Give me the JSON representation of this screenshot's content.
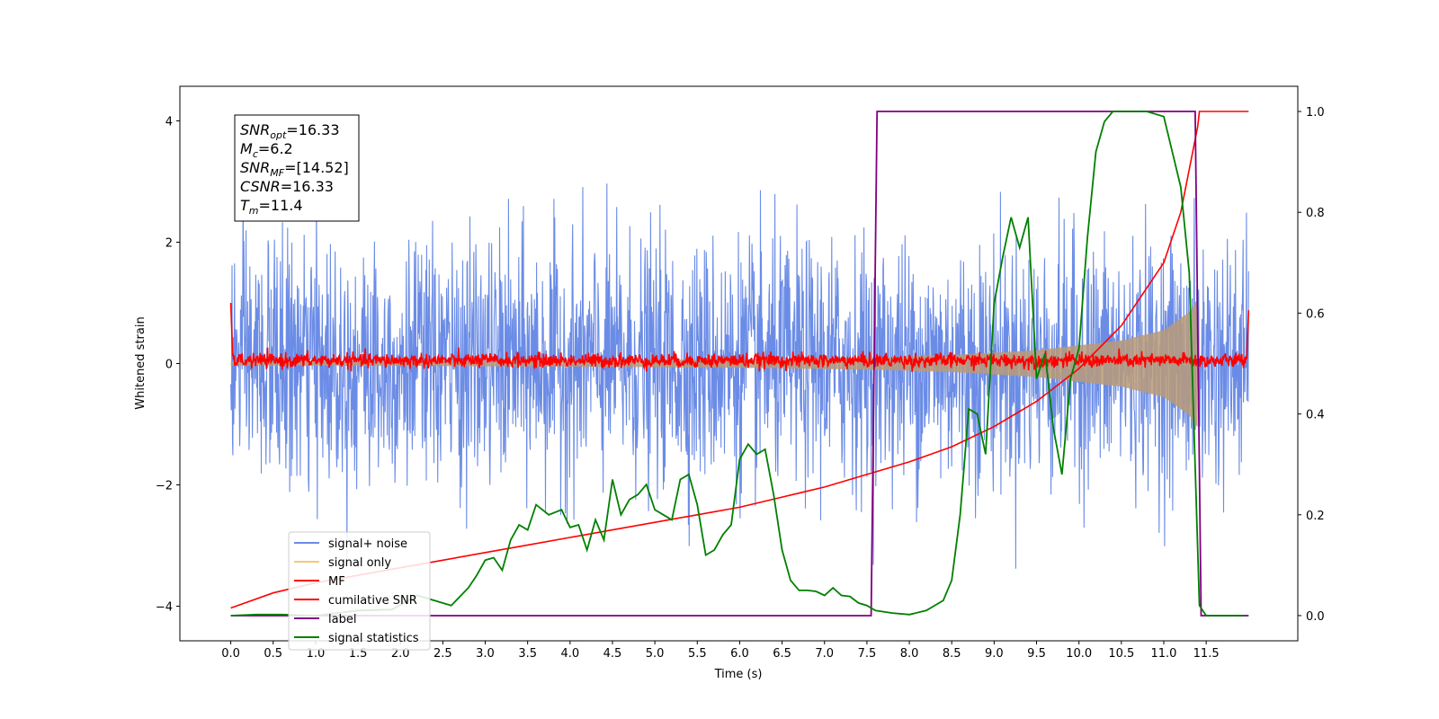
{
  "chart_data": {
    "type": "line",
    "xlabel": "Time (s)",
    "ylabel": "Whitened strain",
    "xlim": [
      -0.6,
      12.58
    ],
    "ylim": [
      -4.57,
      4.57
    ],
    "y2lim": [
      -0.05,
      1.05
    ],
    "x_ticks": [
      0.0,
      0.5,
      1.0,
      1.5,
      2.0,
      2.5,
      3.0,
      3.5,
      4.0,
      4.5,
      5.0,
      5.5,
      6.0,
      6.5,
      7.0,
      7.5,
      8.0,
      8.5,
      9.0,
      9.5,
      10.0,
      10.5,
      11.0,
      11.5
    ],
    "x_tick_labels": [
      "0.0",
      "0.5",
      "1.0",
      "1.5",
      "2.0",
      "2.5",
      "3.0",
      "3.5",
      "4.0",
      "4.5",
      "5.0",
      "5.5",
      "6.0",
      "6.5",
      "7.0",
      "7.5",
      "8.0",
      "8.5",
      "9.0",
      "9.5",
      "10.0",
      "10.5",
      "11.0",
      "11.5"
    ],
    "y_ticks": [
      -4,
      -2,
      0,
      2,
      4
    ],
    "y_tick_labels": [
      "−4",
      "−2",
      "0",
      "2",
      "4"
    ],
    "y2_ticks": [
      0.0,
      0.2,
      0.4,
      0.6,
      0.8,
      1.0
    ],
    "y2_tick_labels": [
      "0.0",
      "0.2",
      "0.4",
      "0.6",
      "0.8",
      "1.0"
    ],
    "grid": false,
    "legend_position": "lower-left",
    "annotation": {
      "lines": [
        {
          "base": "SNR",
          "sub": "opt",
          "value": "=16.33"
        },
        {
          "base": "M",
          "sub": "c",
          "value": "=6.2"
        },
        {
          "base": "SNR",
          "sub": "MF",
          "value": "=[14.52]"
        },
        {
          "base": "CSNR",
          "sub": "",
          "value": "=16.33"
        },
        {
          "base": "T",
          "sub": "m",
          "value": "=11.4"
        }
      ]
    },
    "series": [
      {
        "name": "signal+ noise",
        "color": "#6b8ce6",
        "axis": "left",
        "style": "noise",
        "sigma": 1.0,
        "x_range": [
          0.0,
          12.0
        ]
      },
      {
        "name": "signal only",
        "color": "#f5c77a",
        "axis": "left",
        "style": "chirp",
        "envelope_x": [
          0.0,
          2.0,
          4.0,
          6.0,
          7.5,
          8.5,
          9.5,
          10.5,
          11.0,
          11.3,
          11.4
        ],
        "envelope_y": [
          0.03,
          0.04,
          0.05,
          0.07,
          0.1,
          0.14,
          0.22,
          0.38,
          0.55,
          0.85,
          1.05
        ]
      },
      {
        "name": "MF",
        "color": "#ff0000",
        "axis": "left",
        "style": "mf",
        "baseline": 0.05,
        "peaks": [
          {
            "x": 0.0,
            "y": 1.0
          },
          {
            "x": 12.0,
            "y": 0.88
          }
        ]
      },
      {
        "name": "cumilative SNR",
        "color": "#ff0000",
        "axis": "right",
        "x": [
          0.0,
          0.5,
          1.0,
          1.5,
          2.0,
          2.5,
          3.0,
          3.5,
          4.0,
          4.5,
          5.0,
          5.5,
          6.0,
          6.5,
          7.0,
          7.5,
          8.0,
          8.5,
          9.0,
          9.5,
          10.0,
          10.5,
          11.0,
          11.2,
          11.4,
          11.42,
          12.0
        ],
        "y": [
          0.015,
          0.045,
          0.065,
          0.08,
          0.095,
          0.11,
          0.125,
          0.14,
          0.155,
          0.17,
          0.185,
          0.2,
          0.215,
          0.235,
          0.255,
          0.28,
          0.305,
          0.335,
          0.375,
          0.425,
          0.49,
          0.575,
          0.7,
          0.8,
          0.97,
          1.0,
          1.0
        ]
      },
      {
        "name": "label",
        "color": "#800080",
        "axis": "right",
        "x": [
          0.0,
          7.55,
          7.62,
          11.37,
          11.44,
          12.0
        ],
        "y": [
          0.0,
          0.0,
          1.0,
          1.0,
          0.0,
          0.0
        ]
      },
      {
        "name": "signal statistics",
        "color": "#008000",
        "axis": "right",
        "x": [
          0.0,
          0.3,
          0.6,
          1.0,
          1.5,
          1.9,
          2.2,
          2.4,
          2.6,
          2.8,
          2.9,
          3.0,
          3.1,
          3.2,
          3.3,
          3.4,
          3.5,
          3.6,
          3.75,
          3.9,
          4.0,
          4.1,
          4.2,
          4.3,
          4.4,
          4.5,
          4.6,
          4.7,
          4.8,
          4.9,
          5.0,
          5.1,
          5.2,
          5.3,
          5.4,
          5.5,
          5.6,
          5.7,
          5.8,
          5.9,
          6.0,
          6.1,
          6.2,
          6.3,
          6.4,
          6.5,
          6.6,
          6.7,
          6.8,
          6.9,
          7.0,
          7.1,
          7.2,
          7.3,
          7.4,
          7.5,
          7.6,
          7.8,
          8.0,
          8.2,
          8.4,
          8.5,
          8.6,
          8.7,
          8.8,
          8.9,
          9.0,
          9.1,
          9.2,
          9.3,
          9.4,
          9.5,
          9.6,
          9.7,
          9.8,
          9.9,
          10.0,
          10.1,
          10.2,
          10.3,
          10.4,
          10.6,
          10.8,
          11.0,
          11.2,
          11.3,
          11.42,
          11.5,
          11.7,
          11.95
        ],
        "y": [
          0.0,
          0.002,
          0.002,
          0.0,
          0.01,
          0.012,
          0.04,
          0.03,
          0.02,
          0.055,
          0.08,
          0.11,
          0.115,
          0.09,
          0.15,
          0.18,
          0.17,
          0.22,
          0.2,
          0.21,
          0.175,
          0.18,
          0.13,
          0.19,
          0.15,
          0.27,
          0.2,
          0.23,
          0.24,
          0.26,
          0.21,
          0.2,
          0.19,
          0.27,
          0.28,
          0.22,
          0.12,
          0.13,
          0.16,
          0.18,
          0.31,
          0.34,
          0.32,
          0.33,
          0.24,
          0.13,
          0.07,
          0.05,
          0.05,
          0.048,
          0.04,
          0.055,
          0.04,
          0.038,
          0.025,
          0.02,
          0.01,
          0.005,
          0.002,
          0.01,
          0.03,
          0.07,
          0.2,
          0.41,
          0.4,
          0.32,
          0.62,
          0.71,
          0.79,
          0.73,
          0.79,
          0.47,
          0.52,
          0.37,
          0.28,
          0.47,
          0.53,
          0.75,
          0.92,
          0.98,
          1.0,
          1.0,
          1.0,
          0.99,
          0.85,
          0.68,
          0.02,
          0.0,
          0.0,
          0.0
        ]
      }
    ]
  }
}
